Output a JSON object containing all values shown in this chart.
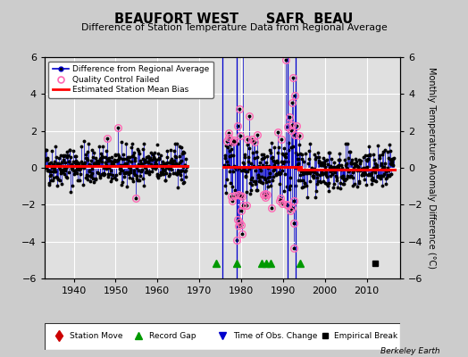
{
  "title": "BEAUFORT WEST      SAFR  BEAU",
  "subtitle": "Difference of Station Temperature Data from Regional Average",
  "ylabel_right": "Monthly Temperature Anomaly Difference (°C)",
  "xlim": [
    1933,
    2018
  ],
  "ylim": [
    -6,
    6
  ],
  "yticks": [
    -6,
    -4,
    -2,
    0,
    2,
    4,
    6
  ],
  "xticks": [
    1940,
    1950,
    1960,
    1970,
    1980,
    1990,
    2000,
    2010
  ],
  "background_color": "#cccccc",
  "plot_bg_color": "#e0e0e0",
  "grid_color": "#ffffff",
  "bias_color": "#ff0000",
  "series_color": "#0000cc",
  "dot_color": "#000000",
  "qc_color": "#ff69b4",
  "gap_years": [
    1974,
    1979,
    1985,
    1986,
    1987,
    1994
  ],
  "empirical_break_years": [
    2012
  ],
  "vline_years": [
    1975.5,
    1979,
    1991,
    1993
  ],
  "seg1_start": 1933.04,
  "seg1_end": 1967.0,
  "seg1_bias": 0.12,
  "seg2_start": 1976.0,
  "seg2_end": 1994.0,
  "seg2_bias": 0.05,
  "seg3_start": 1994.0,
  "seg3_end": 2016.5,
  "seg3_bias": -0.12,
  "seed": 42,
  "legend_items": [
    "Difference from Regional Average",
    "Quality Control Failed",
    "Estimated Station Mean Bias"
  ],
  "bottom_legend": [
    "Station Move",
    "Record Gap",
    "Time of Obs. Change",
    "Empirical Break"
  ]
}
